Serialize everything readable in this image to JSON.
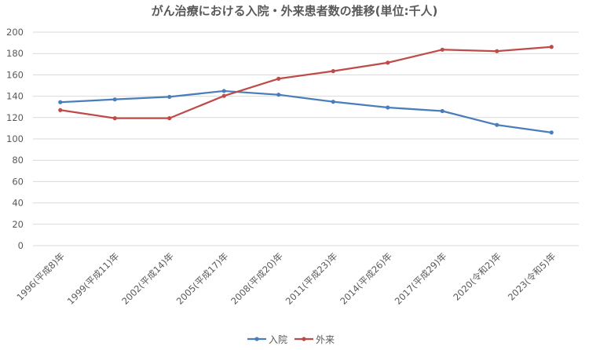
{
  "chart_data": {
    "type": "line",
    "title": "がん治療における入院・外来患者数の推移(単位:千人)",
    "xlabel": "",
    "ylabel": "",
    "ylim": [
      0,
      200
    ],
    "yticks": [
      0,
      20,
      40,
      60,
      80,
      100,
      120,
      140,
      160,
      180,
      200
    ],
    "grid": true,
    "legend_position": "bottom",
    "categories": [
      "1996(平成8)年",
      "1999(平成11)年",
      "2002(平成14)年",
      "2005(平成17)年",
      "2008(平成20)年",
      "2011(平成23)年",
      "2014(平成26)年",
      "2017(平成29)年",
      "2020(令和2)年",
      "2023(令和5)年"
    ],
    "series": [
      {
        "name": "入院",
        "color": "#4a7ebb",
        "values": [
          134.4,
          137.0,
          139.4,
          144.9,
          141.4,
          134.8,
          129.4,
          126.1,
          113.1,
          106.0
        ]
      },
      {
        "name": "外来",
        "color": "#be4b48",
        "values": [
          127.0,
          119.4,
          119.4,
          140.3,
          156.4,
          163.5,
          171.4,
          183.6,
          182.2,
          186.2
        ]
      }
    ]
  }
}
